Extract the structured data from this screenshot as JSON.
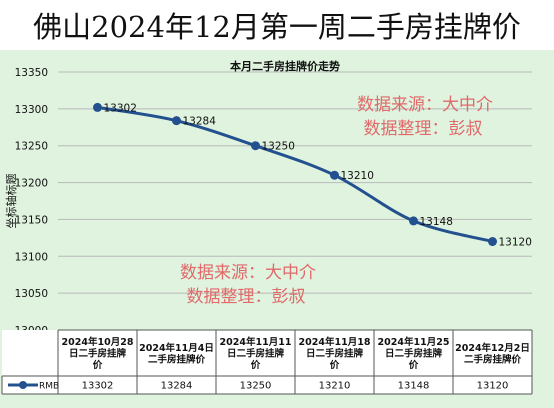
{
  "page": {
    "banner_title": "佛山2024年12月第一周二手房挂牌价"
  },
  "chart_data": {
    "type": "line",
    "title": "本月二手房挂牌价走势",
    "ylabel": "坐标轴标题",
    "xlabel": "",
    "ylim": [
      13000,
      13350
    ],
    "yticks": [
      13000,
      13050,
      13100,
      13150,
      13200,
      13250,
      13300,
      13350
    ],
    "grid": true,
    "categories": [
      [
        "2024年10月28",
        "日二手房挂牌",
        "价"
      ],
      [
        "2024年11月4日",
        "二手房挂牌价"
      ],
      [
        "2024年11月11",
        "日二手房挂牌",
        "价"
      ],
      [
        "2024年11月18",
        "日二手房挂牌",
        "价"
      ],
      [
        "2024年11月25",
        "日二手房挂牌",
        "价"
      ],
      [
        "2024年12月2日",
        "二手房挂牌价"
      ]
    ],
    "series": [
      {
        "name": "RMB",
        "values": [
          13302,
          13284,
          13250,
          13210,
          13148,
          13120
        ]
      }
    ],
    "data_labels": [
      "13302",
      "13284",
      "13250",
      "13210",
      "13148",
      "13120"
    ],
    "annotations": [
      {
        "line1": "数据来源：大中介",
        "line2": "数据整理：彭叔"
      },
      {
        "line1": "数据来源：大中介",
        "line2": "数据整理：彭叔"
      }
    ],
    "colors": {
      "line": "#23508f",
      "plot_bg": "#dff3df",
      "grid": "#b9b9b9",
      "annotation": "#e06a6a"
    }
  }
}
